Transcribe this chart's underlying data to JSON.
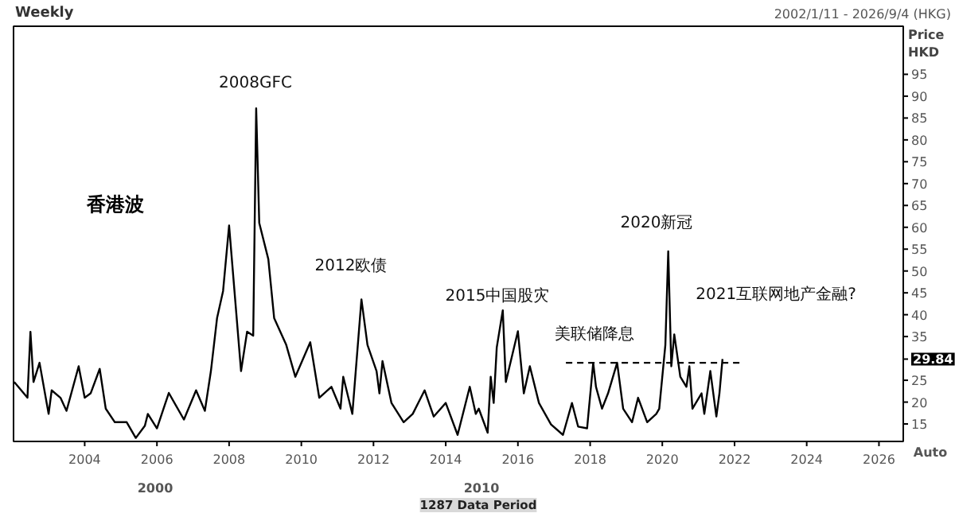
{
  "chart_data": {
    "type": "line",
    "title": "Weekly",
    "subtitle": "2002/1/11 - 2026/9/4 (HKG)",
    "ylabel": "Price HKD",
    "xlim": [
      "2002-01-11",
      "2026-09-04"
    ],
    "ylim": [
      11,
      106
    ],
    "xticks": [
      "2004",
      "2006",
      "2008",
      "2010",
      "2012",
      "2014",
      "2016",
      "2018",
      "2020",
      "2022",
      "2024",
      "2026"
    ],
    "yticks": [
      15,
      20,
      25,
      29.84,
      35,
      40,
      45,
      50,
      55,
      60,
      65,
      70,
      75,
      80,
      85,
      90,
      95
    ],
    "grid": false,
    "series": [
      {
        "color": "#000000",
        "line_style": "solid",
        "x": [
          "2002-01-18",
          "2002-06",
          "2002-07",
          "2002-08",
          "2002-10",
          "2003-01",
          "2003-02",
          "2003-05",
          "2003-07",
          "2003-11",
          "2004-01",
          "2004-03",
          "2004-06",
          "2004-08",
          "2004-11",
          "2005-03",
          "2005-06",
          "2005-09",
          "2005-10",
          "2006-01",
          "2006-05",
          "2006-10",
          "2007-02",
          "2007-05",
          "2007-07",
          "2007-09",
          "2007-11",
          "2008-01",
          "2008-05",
          "2008-07",
          "2008-09",
          "2008-10",
          "2008-11",
          "2009-02",
          "2009-04",
          "2009-08",
          "2009-11",
          "2010-04",
          "2010-07",
          "2010-11",
          "2011-02",
          "2011-03",
          "2011-06",
          "2011-09",
          "2011-11",
          "2012-02",
          "2012-03",
          "2012-04",
          "2012-07",
          "2012-11",
          "2013-02",
          "2013-06",
          "2013-09",
          "2014-01",
          "2014-05",
          "2014-09",
          "2014-11",
          "2014-12",
          "2015-03",
          "2015-04",
          "2015-05",
          "2015-06",
          "2015-08",
          "2015-09",
          "2016-01",
          "2016-03",
          "2016-05",
          "2016-08",
          "2016-12",
          "2017-04",
          "2017-07",
          "2017-09",
          "2017-12",
          "2018-02",
          "2018-03",
          "2018-05",
          "2018-07",
          "2018-10",
          "2018-12",
          "2019-03",
          "2019-05",
          "2019-08",
          "2019-11",
          "2019-12",
          "2020-02",
          "2020-03",
          "2020-04",
          "2020-05",
          "2020-07",
          "2020-09",
          "2020-10",
          "2020-11",
          "2021-02",
          "2021-03",
          "2021-05",
          "2021-07",
          "2021-08",
          "2021-09"
        ],
        "values": [
          24.6,
          21,
          36.1,
          24.6,
          29,
          17.3,
          22.7,
          21,
          18,
          28.2,
          21,
          22,
          27.6,
          18.5,
          15.4,
          15.4,
          11.8,
          14.6,
          17.3,
          14,
          22.1,
          16,
          22.7,
          18,
          27.1,
          39.2,
          45.4,
          60.4,
          27.1,
          36.1,
          35.2,
          87.2,
          61,
          52.7,
          39.2,
          33.1,
          25.8,
          33.7,
          21,
          23.5,
          18.5,
          25.8,
          17.3,
          43.5,
          33.1,
          27.1,
          22,
          29.4,
          19.8,
          15.4,
          17.3,
          22.7,
          16.7,
          19.8,
          12.5,
          23.5,
          17.3,
          18.5,
          13,
          25.8,
          19.8,
          32.5,
          41,
          24.6,
          36.2,
          22,
          28.2,
          19.8,
          14.9,
          12.5,
          19.8,
          14.4,
          14,
          29,
          23.5,
          18.5,
          22,
          29,
          18.5,
          15.4,
          21,
          15.4,
          17.3,
          18.5,
          33.1,
          54.5,
          28.2,
          35.5,
          25.8,
          23.5,
          28.2,
          18.5,
          22,
          17.3,
          27.1,
          16.7,
          22,
          29.84
        ]
      },
      {
        "color": "#000000",
        "line_style": "dashed",
        "x": [
          "2017-05",
          "2022-04"
        ],
        "values": [
          29,
          29
        ]
      }
    ],
    "annotations": [
      "2008GFC",
      "2012欧债",
      "2015中国股灾",
      "美联储降息",
      "2020新冠",
      "2021互联网地产金融?",
      "香港波",
      "Auto",
      "2000",
      "2010",
      "1287 Data Period"
    ]
  }
}
